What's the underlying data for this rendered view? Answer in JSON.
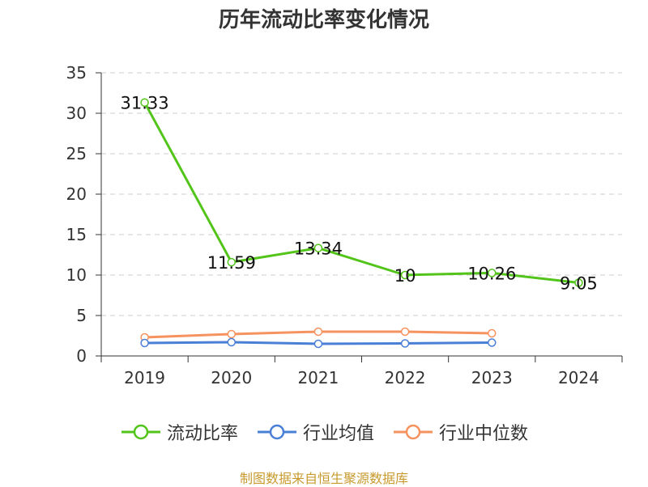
{
  "chart_data": {
    "type": "line",
    "title": "历年流动比率变化情况",
    "categories": [
      "2019",
      "2020",
      "2021",
      "2022",
      "2023",
      "2024"
    ],
    "ylim": [
      0,
      35
    ],
    "yticks": [
      "0",
      "5",
      "10",
      "15",
      "20",
      "25",
      "30",
      "35"
    ],
    "grid": true,
    "legend_position": "bottom",
    "series": [
      {
        "name": "流动比率",
        "color": "#52c41a",
        "values": [
          31.33,
          11.59,
          13.34,
          10,
          10.26,
          9.05
        ],
        "labels": [
          "31.33",
          "11.59",
          "13.34",
          "10",
          "10.26",
          "9.05"
        ]
      },
      {
        "name": "行业均值",
        "color": "#4a7fd6",
        "values": [
          1.6,
          1.7,
          1.5,
          1.55,
          1.65,
          null
        ]
      },
      {
        "name": "行业中位数",
        "color": "#f5925e",
        "values": [
          2.3,
          2.7,
          3.0,
          3.0,
          2.8,
          null
        ]
      }
    ]
  },
  "source": {
    "text": "制图数据来自恒生聚源数据库",
    "color": "#c79a2e"
  }
}
